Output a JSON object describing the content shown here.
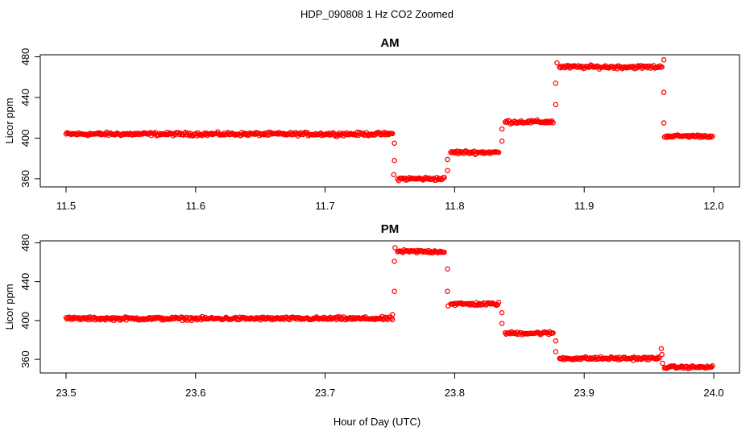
{
  "figure": {
    "title": "HDP_090808  1 Hz CO2 Zoomed",
    "xlabel": "Hour of Day (UTC)"
  },
  "chart_data": [
    {
      "type": "scatter",
      "title": "AM",
      "ylabel": "Licor ppm",
      "xlim": [
        11.5,
        12.0
      ],
      "ylim": [
        352,
        482
      ],
      "x_ticks": [
        "11.5",
        "11.6",
        "11.7",
        "11.8",
        "11.9",
        "12.0"
      ],
      "y_ticks": [
        "360",
        "400",
        "440",
        "480"
      ],
      "marker": "open circle",
      "marker_color": "#ff0000",
      "segments": [
        {
          "x_start": 11.5,
          "x_end": 11.752,
          "y": 404,
          "noise": 1.0
        },
        {
          "x_start": 11.756,
          "x_end": 11.792,
          "y": 360,
          "noise": 1.0
        },
        {
          "x_start": 11.797,
          "x_end": 11.834,
          "y": 386,
          "noise": 1.0
        },
        {
          "x_start": 11.839,
          "x_end": 11.876,
          "y": 416,
          "noise": 1.0
        },
        {
          "x_start": 11.881,
          "x_end": 11.96,
          "y": 470,
          "noise": 1.0
        },
        {
          "x_start": 11.963,
          "x_end": 11.999,
          "y": 402,
          "noise": 0.8
        }
      ],
      "transition_points": [
        {
          "x": 11.7535,
          "y": 395
        },
        {
          "x": 11.7535,
          "y": 378
        },
        {
          "x": 11.753,
          "y": 364
        },
        {
          "x": 11.7945,
          "y": 368
        },
        {
          "x": 11.7945,
          "y": 379
        },
        {
          "x": 11.8365,
          "y": 397
        },
        {
          "x": 11.8365,
          "y": 409
        },
        {
          "x": 11.878,
          "y": 433
        },
        {
          "x": 11.878,
          "y": 454
        },
        {
          "x": 11.879,
          "y": 474
        },
        {
          "x": 11.9615,
          "y": 477
        },
        {
          "x": 11.9615,
          "y": 445
        },
        {
          "x": 11.9615,
          "y": 415
        },
        {
          "x": 11.962,
          "y": 401
        }
      ]
    },
    {
      "type": "scatter",
      "title": "PM",
      "ylabel": "Licor ppm",
      "xlim": [
        23.5,
        24.0
      ],
      "ylim": [
        346,
        482
      ],
      "x_ticks": [
        "23.5",
        "23.6",
        "23.7",
        "23.8",
        "23.9",
        "24.0"
      ],
      "y_ticks": [
        "360",
        "400",
        "440",
        "480"
      ],
      "marker": "open circle",
      "marker_color": "#ff0000",
      "segments": [
        {
          "x_start": 23.5,
          "x_end": 23.752,
          "y": 402,
          "noise": 1.0
        },
        {
          "x_start": 23.756,
          "x_end": 23.792,
          "y": 471,
          "noise": 1.0
        },
        {
          "x_start": 23.797,
          "x_end": 23.834,
          "y": 417,
          "noise": 1.0
        },
        {
          "x_start": 23.839,
          "x_end": 23.876,
          "y": 387,
          "noise": 1.0
        },
        {
          "x_start": 23.881,
          "x_end": 23.958,
          "y": 361,
          "noise": 1.0
        },
        {
          "x_start": 23.962,
          "x_end": 23.999,
          "y": 352,
          "noise": 0.8
        }
      ],
      "transition_points": [
        {
          "x": 23.752,
          "y": 406
        },
        {
          "x": 23.7535,
          "y": 430
        },
        {
          "x": 23.7535,
          "y": 461
        },
        {
          "x": 23.754,
          "y": 475
        },
        {
          "x": 23.7945,
          "y": 453
        },
        {
          "x": 23.7945,
          "y": 430
        },
        {
          "x": 23.795,
          "y": 415
        },
        {
          "x": 23.8365,
          "y": 408
        },
        {
          "x": 23.8365,
          "y": 397
        },
        {
          "x": 23.878,
          "y": 379
        },
        {
          "x": 23.878,
          "y": 368
        },
        {
          "x": 23.9595,
          "y": 371
        },
        {
          "x": 23.96,
          "y": 365
        },
        {
          "x": 23.9605,
          "y": 356
        }
      ]
    }
  ]
}
